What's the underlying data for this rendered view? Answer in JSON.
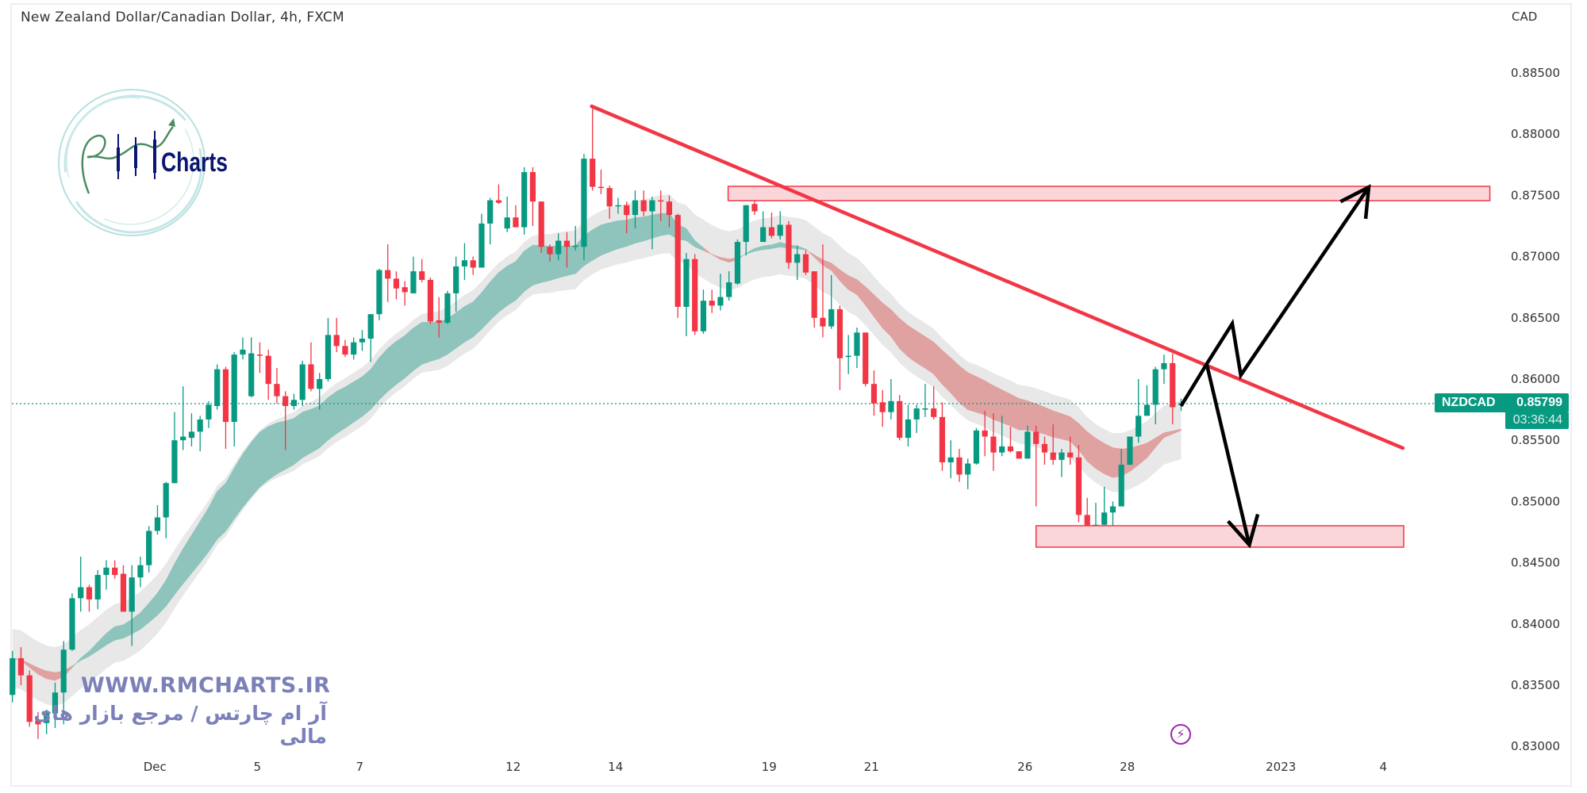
{
  "header": {
    "title": "New Zealand Dollar/Canadian Dollar, 4h, FXCM",
    "currency": "CAD"
  },
  "logo": {
    "text": "RM Charts"
  },
  "watermark": {
    "url": "WWW.RMCHARTS.IR",
    "persian": "آر ام چارتس / مرجع بازار های مالی"
  },
  "price_tag": {
    "symbol": "NZDCAD",
    "price": "0.85799",
    "countdown": "03:36:44"
  },
  "icons": {
    "bottom": "lightning-icon"
  },
  "colors": {
    "up": "#089981",
    "down": "#f23645",
    "ribbon_up": "#8ec4bb",
    "ribbon_down": "#e0a1a1",
    "envelope": "#e6e6e6",
    "drawing_red": "#f23645",
    "zone_fill": "#fad5d9",
    "arrows": "#000000"
  },
  "chart_data": {
    "type": "candlestick",
    "symbol": "NZDCAD",
    "interval": "4h",
    "ylim": [
      0.8285,
      0.8895
    ],
    "grid": false,
    "y_ticks": [
      "0.88500",
      "0.88000",
      "0.87500",
      "0.87000",
      "0.86500",
      "0.86000",
      "0.85500",
      "0.85000",
      "0.84500",
      "0.84000",
      "0.83500",
      "0.83000"
    ],
    "x_ticks": [
      {
        "label": "Dec",
        "date": "2022-12-01"
      },
      {
        "label": "5",
        "date": "2022-12-05"
      },
      {
        "label": "7",
        "date": "2022-12-07"
      },
      {
        "label": "12",
        "date": "2022-12-12"
      },
      {
        "label": "14",
        "date": "2022-12-14"
      },
      {
        "label": "19",
        "date": "2022-12-19"
      },
      {
        "label": "21",
        "date": "2022-12-21"
      },
      {
        "label": "26",
        "date": "2022-12-26"
      },
      {
        "label": "28",
        "date": "2022-12-28"
      },
      {
        "label": "2023",
        "date": "2023-01-02"
      },
      {
        "label": "4",
        "date": "2023-01-04"
      }
    ],
    "ohlc_fields": [
      "open",
      "high",
      "low",
      "close"
    ],
    "candles": [
      [
        0.8342,
        0.8378,
        0.8336,
        0.8372
      ],
      [
        0.8372,
        0.8381,
        0.835,
        0.8358
      ],
      [
        0.8358,
        0.8362,
        0.8316,
        0.832
      ],
      [
        0.8321,
        0.8328,
        0.8306,
        0.8318
      ],
      [
        0.8319,
        0.833,
        0.831,
        0.8327
      ],
      [
        0.8327,
        0.8352,
        0.8315,
        0.8344
      ],
      [
        0.8344,
        0.8386,
        0.8318,
        0.8379
      ],
      [
        0.8379,
        0.8425,
        0.8378,
        0.8421
      ],
      [
        0.8421,
        0.8455,
        0.841,
        0.843
      ],
      [
        0.843,
        0.8432,
        0.841,
        0.842
      ],
      [
        0.842,
        0.8444,
        0.8412,
        0.844
      ],
      [
        0.844,
        0.8452,
        0.8428,
        0.8446
      ],
      [
        0.8446,
        0.8452,
        0.8437,
        0.844
      ],
      [
        0.8441,
        0.8448,
        0.841,
        0.841
      ],
      [
        0.841,
        0.8448,
        0.8382,
        0.8438
      ],
      [
        0.8438,
        0.8455,
        0.843,
        0.8448
      ],
      [
        0.8448,
        0.848,
        0.8442,
        0.8476
      ],
      [
        0.8476,
        0.8497,
        0.8473,
        0.8487
      ],
      [
        0.8487,
        0.8516,
        0.847,
        0.8515
      ],
      [
        0.8515,
        0.8573,
        0.8515,
        0.855
      ],
      [
        0.855,
        0.8594,
        0.8542,
        0.8553
      ],
      [
        0.8552,
        0.8572,
        0.8545,
        0.8557
      ],
      [
        0.8557,
        0.857,
        0.8541,
        0.8567
      ],
      [
        0.8567,
        0.8582,
        0.856,
        0.8579
      ],
      [
        0.8578,
        0.8612,
        0.8575,
        0.8608
      ],
      [
        0.8608,
        0.861,
        0.8543,
        0.8565
      ],
      [
        0.8565,
        0.8622,
        0.8545,
        0.862
      ],
      [
        0.862,
        0.8634,
        0.8616,
        0.8624
      ],
      [
        0.8586,
        0.8634,
        0.8585,
        0.8621
      ],
      [
        0.862,
        0.863,
        0.8605,
        0.8619
      ],
      [
        0.8619,
        0.8624,
        0.8583,
        0.8596
      ],
      [
        0.8596,
        0.8609,
        0.858,
        0.8586
      ],
      [
        0.8586,
        0.859,
        0.8542,
        0.8578
      ],
      [
        0.8578,
        0.8588,
        0.8575,
        0.8583
      ],
      [
        0.8583,
        0.8615,
        0.8578,
        0.8612
      ],
      [
        0.8612,
        0.863,
        0.859,
        0.8592
      ],
      [
        0.8592,
        0.8605,
        0.8575,
        0.86
      ],
      [
        0.86,
        0.865,
        0.8598,
        0.8636
      ],
      [
        0.8636,
        0.865,
        0.8622,
        0.8627
      ],
      [
        0.8627,
        0.8632,
        0.8618,
        0.862
      ],
      [
        0.862,
        0.8634,
        0.8616,
        0.863
      ],
      [
        0.863,
        0.864,
        0.8623,
        0.8633
      ],
      [
        0.8633,
        0.8653,
        0.8614,
        0.8653
      ],
      [
        0.8653,
        0.869,
        0.8648,
        0.8689
      ],
      [
        0.8689,
        0.871,
        0.8663,
        0.8682
      ],
      [
        0.8682,
        0.8688,
        0.8665,
        0.8674
      ],
      [
        0.8675,
        0.868,
        0.866,
        0.8671
      ],
      [
        0.867,
        0.87,
        0.867,
        0.8688
      ],
      [
        0.8688,
        0.8698,
        0.8679,
        0.8681
      ],
      [
        0.8681,
        0.8683,
        0.8645,
        0.8647
      ],
      [
        0.8648,
        0.8667,
        0.8634,
        0.8646
      ],
      [
        0.8646,
        0.8672,
        0.8645,
        0.867
      ],
      [
        0.867,
        0.87,
        0.8655,
        0.8692
      ],
      [
        0.8692,
        0.8711,
        0.8681,
        0.8697
      ],
      [
        0.8697,
        0.87,
        0.8685,
        0.8691
      ],
      [
        0.8691,
        0.8735,
        0.8691,
        0.8727
      ],
      [
        0.8727,
        0.8748,
        0.871,
        0.8746
      ],
      [
        0.8746,
        0.8759,
        0.8743,
        0.8744
      ],
      [
        0.8723,
        0.8749,
        0.872,
        0.8732
      ],
      [
        0.8732,
        0.8742,
        0.8724,
        0.8724
      ],
      [
        0.8724,
        0.8773,
        0.8718,
        0.8769
      ],
      [
        0.8769,
        0.8773,
        0.8725,
        0.8745
      ],
      [
        0.8745,
        0.8745,
        0.8703,
        0.8708
      ],
      [
        0.8708,
        0.871,
        0.8696,
        0.8702
      ],
      [
        0.8702,
        0.8719,
        0.8697,
        0.8713
      ],
      [
        0.8713,
        0.872,
        0.8691,
        0.8708
      ],
      [
        0.8708,
        0.8725,
        0.8705,
        0.8709
      ],
      [
        0.8708,
        0.8784,
        0.8697,
        0.878
      ],
      [
        0.878,
        0.8822,
        0.8754,
        0.8757
      ],
      [
        0.8757,
        0.8771,
        0.8751,
        0.8756
      ],
      [
        0.8756,
        0.8758,
        0.8731,
        0.8741
      ],
      [
        0.8741,
        0.8748,
        0.8735,
        0.8742
      ],
      [
        0.8742,
        0.8745,
        0.8719,
        0.8734
      ],
      [
        0.8734,
        0.8754,
        0.8723,
        0.8746
      ],
      [
        0.8746,
        0.8754,
        0.8733,
        0.8737
      ],
      [
        0.8737,
        0.8749,
        0.8706,
        0.8746
      ],
      [
        0.8746,
        0.8754,
        0.8729,
        0.8745
      ],
      [
        0.8745,
        0.875,
        0.8724,
        0.8734
      ],
      [
        0.8734,
        0.8735,
        0.865,
        0.8659
      ],
      [
        0.8659,
        0.8703,
        0.8635,
        0.8698
      ],
      [
        0.8698,
        0.8702,
        0.8636,
        0.8639
      ],
      [
        0.8639,
        0.8673,
        0.8637,
        0.8664
      ],
      [
        0.8664,
        0.8673,
        0.8654,
        0.866
      ],
      [
        0.866,
        0.8686,
        0.8656,
        0.8667
      ],
      [
        0.8667,
        0.8688,
        0.8664,
        0.8679
      ],
      [
        0.8678,
        0.8714,
        0.8677,
        0.8712
      ],
      [
        0.8712,
        0.8742,
        0.8701,
        0.8742
      ],
      [
        0.8743,
        0.8758,
        0.8734,
        0.8737
      ],
      [
        0.8712,
        0.8737,
        0.8712,
        0.8724
      ],
      [
        0.8724,
        0.8736,
        0.8715,
        0.8717
      ],
      [
        0.8717,
        0.8737,
        0.8714,
        0.8726
      ],
      [
        0.8726,
        0.8729,
        0.869,
        0.8695
      ],
      [
        0.8695,
        0.8709,
        0.8681,
        0.8702
      ],
      [
        0.8702,
        0.8705,
        0.8685,
        0.8687
      ],
      [
        0.8688,
        0.8688,
        0.8642,
        0.865
      ],
      [
        0.865,
        0.871,
        0.8634,
        0.8643
      ],
      [
        0.8643,
        0.8685,
        0.8641,
        0.8657
      ],
      [
        0.8657,
        0.866,
        0.8591,
        0.8617
      ],
      [
        0.8618,
        0.8636,
        0.8604,
        0.8619
      ],
      [
        0.8619,
        0.8642,
        0.8609,
        0.8638
      ],
      [
        0.8638,
        0.8638,
        0.8594,
        0.8596
      ],
      [
        0.8596,
        0.8607,
        0.857,
        0.858
      ],
      [
        0.8581,
        0.8591,
        0.8561,
        0.8573
      ],
      [
        0.8573,
        0.86,
        0.8567,
        0.8582
      ],
      [
        0.8582,
        0.8587,
        0.855,
        0.8552
      ],
      [
        0.8552,
        0.8579,
        0.8545,
        0.8567
      ],
      [
        0.8567,
        0.8579,
        0.8556,
        0.8576
      ],
      [
        0.8576,
        0.8596,
        0.8569,
        0.8576
      ],
      [
        0.8576,
        0.8594,
        0.8567,
        0.8569
      ],
      [
        0.8569,
        0.8581,
        0.8525,
        0.8532
      ],
      [
        0.8532,
        0.855,
        0.8519,
        0.8536
      ],
      [
        0.8536,
        0.8543,
        0.8516,
        0.8522
      ],
      [
        0.8522,
        0.8535,
        0.851,
        0.8531
      ],
      [
        0.8531,
        0.856,
        0.853,
        0.8558
      ],
      [
        0.8558,
        0.8574,
        0.8537,
        0.8553
      ],
      [
        0.8553,
        0.8572,
        0.8525,
        0.854
      ],
      [
        0.854,
        0.857,
        0.8537,
        0.8545
      ],
      [
        0.8545,
        0.8561,
        0.854,
        0.8541
      ],
      [
        0.8541,
        0.8541,
        0.8535,
        0.8535
      ],
      [
        0.8535,
        0.8562,
        0.8535,
        0.8557
      ],
      [
        0.8557,
        0.8562,
        0.8496,
        0.8547
      ],
      [
        0.8547,
        0.8553,
        0.853,
        0.854
      ],
      [
        0.854,
        0.8563,
        0.853,
        0.8534
      ],
      [
        0.8534,
        0.8543,
        0.852,
        0.854
      ],
      [
        0.854,
        0.8553,
        0.853,
        0.8536
      ],
      [
        0.8536,
        0.8546,
        0.8483,
        0.8489
      ],
      [
        0.8489,
        0.8503,
        0.8463,
        0.8464
      ],
      [
        0.8464,
        0.8499,
        0.8463,
        0.8481
      ],
      [
        0.8481,
        0.8512,
        0.8471,
        0.8491
      ],
      [
        0.8491,
        0.85,
        0.8474,
        0.8496
      ],
      [
        0.8496,
        0.8543,
        0.8496,
        0.853
      ],
      [
        0.853,
        0.8553,
        0.853,
        0.8553
      ],
      [
        0.8553,
        0.86,
        0.8548,
        0.857
      ],
      [
        0.857,
        0.8595,
        0.857,
        0.8579
      ],
      [
        0.8579,
        0.861,
        0.8563,
        0.8608
      ],
      [
        0.8608,
        0.862,
        0.8596,
        0.8613
      ],
      [
        0.8613,
        0.8621,
        0.8563,
        0.8577
      ],
      [
        0.8579,
        0.8584,
        0.8574,
        0.85799
      ]
    ],
    "last_price": 0.85799,
    "drawings": {
      "trendline": {
        "from": {
          "bar": 67.9,
          "price": 0.88228
        },
        "to": {
          "bar": 163.0,
          "price": 0.85436
        }
      },
      "resistance_zone": {
        "bar_from": 83.9,
        "bar_to": 173.2,
        "price_top": 0.87574,
        "price_bottom": 0.87457
      },
      "support_zone": {
        "bar_from": 120.0,
        "bar_to": 163.1,
        "price_top": 0.84802,
        "price_bottom": 0.84627
      },
      "bullish_path": [
        {
          "bar": 137.0,
          "price": 0.8578
        },
        {
          "bar": 140.0,
          "price": 0.86123
        },
        {
          "bar": 143.0,
          "price": 0.86453
        },
        {
          "bar": 144.0,
          "price": 0.86032
        },
        {
          "bar": 159.0,
          "price": 0.87567
        }
      ],
      "bearish_path": [
        {
          "bar": 140.0,
          "price": 0.86123
        },
        {
          "bar": 145.0,
          "price": 0.84646
        }
      ]
    }
  }
}
